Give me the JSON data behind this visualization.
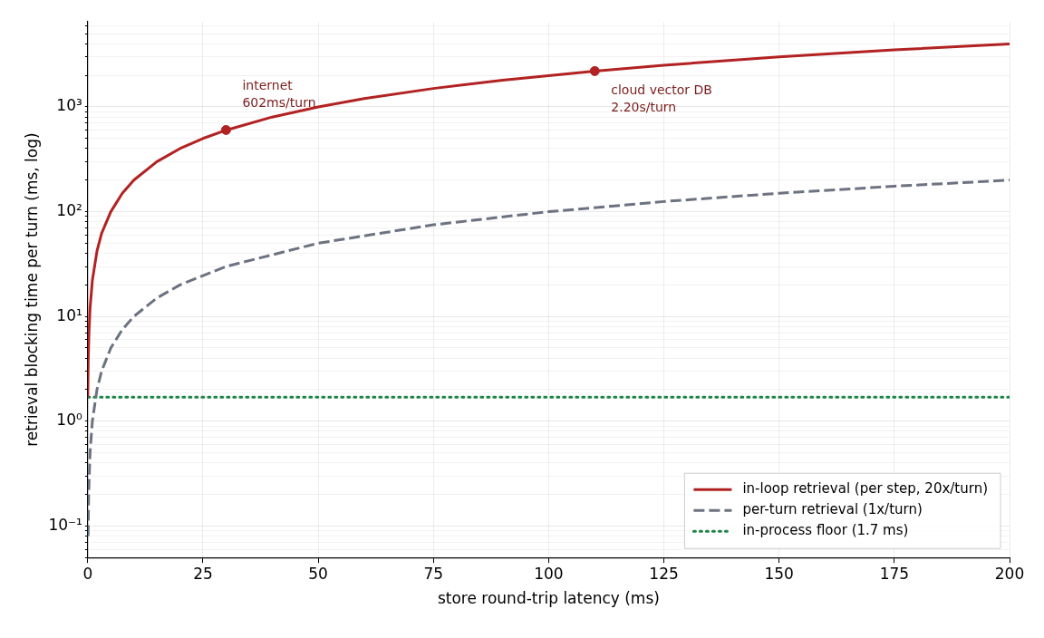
{
  "chart_data": {
    "type": "line",
    "xlabel": "store round-trip latency (ms)",
    "ylabel": "retrieval blocking time per turn (ms, log)",
    "xlim": [
      0,
      200
    ],
    "xticks": [
      0,
      25,
      50,
      75,
      100,
      125,
      150,
      175,
      200
    ],
    "ylim": [
      0.05,
      6500
    ],
    "log": "y",
    "yticks": [
      {
        "value": 0.05,
        "label": null
      },
      {
        "value": 0.06,
        "label": null
      },
      {
        "value": 0.07,
        "label": null
      },
      {
        "value": 0.08,
        "label": null
      },
      {
        "value": 0.09,
        "label": null
      },
      {
        "value": 0.1,
        "label": "10⁻¹"
      },
      {
        "value": 0.2,
        "label": null
      },
      {
        "value": 0.3,
        "label": null
      },
      {
        "value": 0.4,
        "label": null
      },
      {
        "value": 0.5,
        "label": null
      },
      {
        "value": 0.6,
        "label": null
      },
      {
        "value": 0.7,
        "label": null
      },
      {
        "value": 0.8,
        "label": null
      },
      {
        "value": 0.9,
        "label": null
      },
      {
        "value": 1,
        "label": "10⁰"
      },
      {
        "value": 2,
        "label": null
      },
      {
        "value": 3,
        "label": null
      },
      {
        "value": 4,
        "label": null
      },
      {
        "value": 5,
        "label": null
      },
      {
        "value": 6,
        "label": null
      },
      {
        "value": 7,
        "label": null
      },
      {
        "value": 8,
        "label": null
      },
      {
        "value": 9,
        "label": null
      },
      {
        "value": 10,
        "label": "10¹"
      },
      {
        "value": 20,
        "label": null
      },
      {
        "value": 30,
        "label": null
      },
      {
        "value": 40,
        "label": null
      },
      {
        "value": 50,
        "label": null
      },
      {
        "value": 60,
        "label": null
      },
      {
        "value": 70,
        "label": null
      },
      {
        "value": 80,
        "label": null
      },
      {
        "value": 90,
        "label": null
      },
      {
        "value": 100,
        "label": "10²"
      },
      {
        "value": 200,
        "label": null
      },
      {
        "value": 300,
        "label": null
      },
      {
        "value": 400,
        "label": null
      },
      {
        "value": 500,
        "label": null
      },
      {
        "value": 600,
        "label": null
      },
      {
        "value": 700,
        "label": null
      },
      {
        "value": 800,
        "label": null
      },
      {
        "value": 900,
        "label": null
      },
      {
        "value": 1000,
        "label": "10³"
      },
      {
        "value": 2000,
        "label": null
      },
      {
        "value": 3000,
        "label": null
      },
      {
        "value": 4000,
        "label": null
      },
      {
        "value": 5000,
        "label": null
      },
      {
        "value": 6000,
        "label": null
      }
    ],
    "grid": true,
    "legend": "bottom right",
    "series": [
      {
        "name": "in-loop retrieval (per step, 20x/turn)",
        "color": "#b22222",
        "line_style": "solid",
        "marker": "none",
        "x": [
          0,
          0.1,
          0.25,
          0.5,
          1,
          2,
          3,
          5,
          7.5,
          10,
          15,
          20,
          25,
          30,
          40,
          50,
          60,
          75,
          90,
          110,
          125,
          150,
          175,
          200
        ],
        "values": [
          1.7,
          3.7,
          6.7,
          12,
          22,
          42,
          62,
          100,
          150,
          200,
          300,
          400,
          500,
          600,
          800,
          1000,
          1200,
          1500,
          1800,
          2200,
          2500,
          3000,
          3500,
          4000
        ]
      },
      {
        "name": "per-turn retrieval (1x/turn)",
        "color": "#6b7280",
        "line_style": "dashed",
        "marker": "none",
        "x": [
          0.08,
          0.2,
          0.5,
          1,
          2,
          3,
          5,
          7.5,
          10,
          15,
          20,
          30,
          50,
          75,
          100,
          125,
          150,
          175,
          200
        ],
        "values": [
          0.08,
          0.2,
          0.5,
          1,
          2,
          3,
          5,
          7.5,
          10,
          15,
          20,
          30,
          50,
          75,
          100,
          125,
          150,
          175,
          200
        ]
      },
      {
        "name": "in-process floor (1.7 ms)",
        "color": "#1e8449",
        "line_style": "dotted",
        "marker": "none",
        "x": [
          0,
          200
        ],
        "values": [
          1.7,
          1.7
        ]
      },
      {
        "type": "scatter",
        "color": "#b22222",
        "marker": "circle",
        "x": [
          30,
          110
        ],
        "values": [
          602,
          2200
        ]
      }
    ],
    "annotations": [
      {
        "text": "internet\n602ms/turn",
        "x": 30,
        "y": 602
      },
      {
        "text": "cloud vector DB\n2.20s/turn",
        "x": 110,
        "y": 2200
      }
    ]
  }
}
